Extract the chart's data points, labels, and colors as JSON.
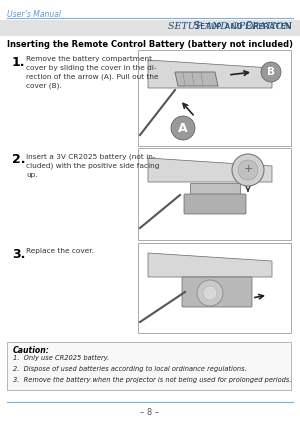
{
  "page_bg": "#ffffff",
  "header_text": "User’s Manual",
  "header_color": "#5b9bd5",
  "header_line_color": "#7eb3d8",
  "section_bg": "#e2e2e2",
  "section_title": "Setup and Operation",
  "section_title_color": "#1e4d7a",
  "main_heading": "Inserting the Remote Control Battery (battery not included)",
  "step1_num": "1.",
  "step1_text": "Remove the battery compartment\ncover by sliding the cover in the di-\nrection of the arrow (A). Pull out the\ncover (B).",
  "step2_num": "2.",
  "step2_text": "Insert a 3V CR2025 battery (not in-\ncluded) with the positive side facing\nup.",
  "step3_num": "3.",
  "step3_text": "Replace the cover.",
  "caution_title": "Caution:",
  "caution_lines": [
    "1.  Only use CR2025 battery.",
    "2.  Dispose of used batteries according to local ordinance regulations.",
    "3.  Remove the battery when the projector is not being used for prolonged periods."
  ],
  "footer_line_color": "#7eb3d8",
  "footer_text": "– 8 –",
  "text_color": "#333333",
  "img_border": "#aaaaaa",
  "img_bg": "#ffffff",
  "remote_body": "#e0e0e0",
  "remote_edge": "#888888"
}
